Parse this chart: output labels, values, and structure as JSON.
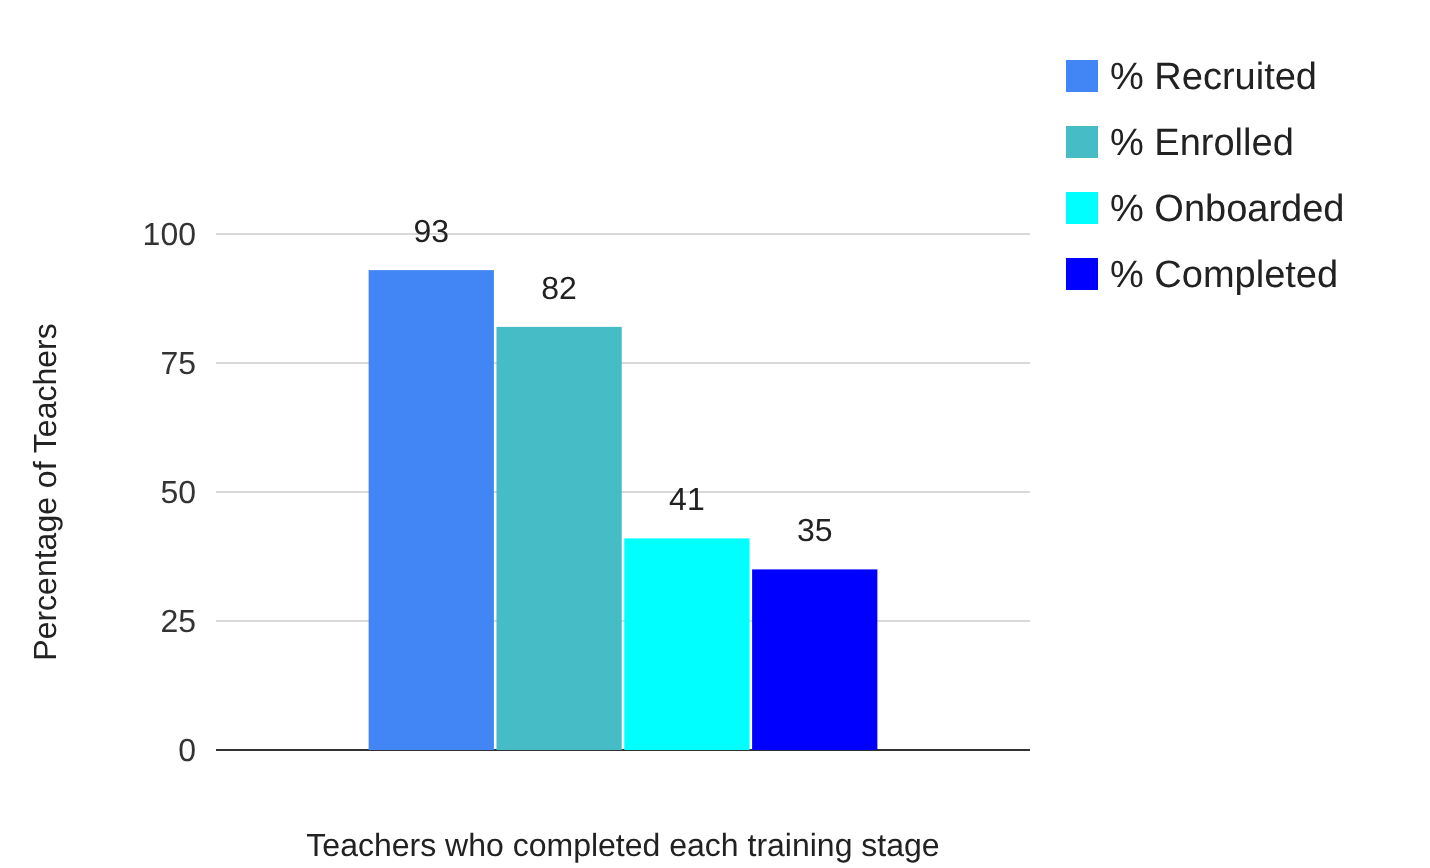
{
  "chart_data": {
    "type": "bar",
    "xlabel": "Teachers who completed each training stage",
    "ylabel": "Percentage of Teachers",
    "categories": [
      null
    ],
    "series": [
      {
        "name": "% Recruited",
        "color": "#4285f4",
        "values": [
          93
        ]
      },
      {
        "name": "% Enrolled",
        "color": "#46bdc6",
        "values": [
          82
        ]
      },
      {
        "name": "% Onboarded",
        "color": "#00ffff",
        "values": [
          41
        ]
      },
      {
        "name": "% Completed",
        "color": "#0000ff",
        "values": [
          35
        ]
      }
    ],
    "ylim": [
      0,
      100
    ],
    "yticks": [
      0,
      25,
      50,
      75,
      100
    ],
    "grid": "y",
    "legend": "top right",
    "data_labels": true
  }
}
